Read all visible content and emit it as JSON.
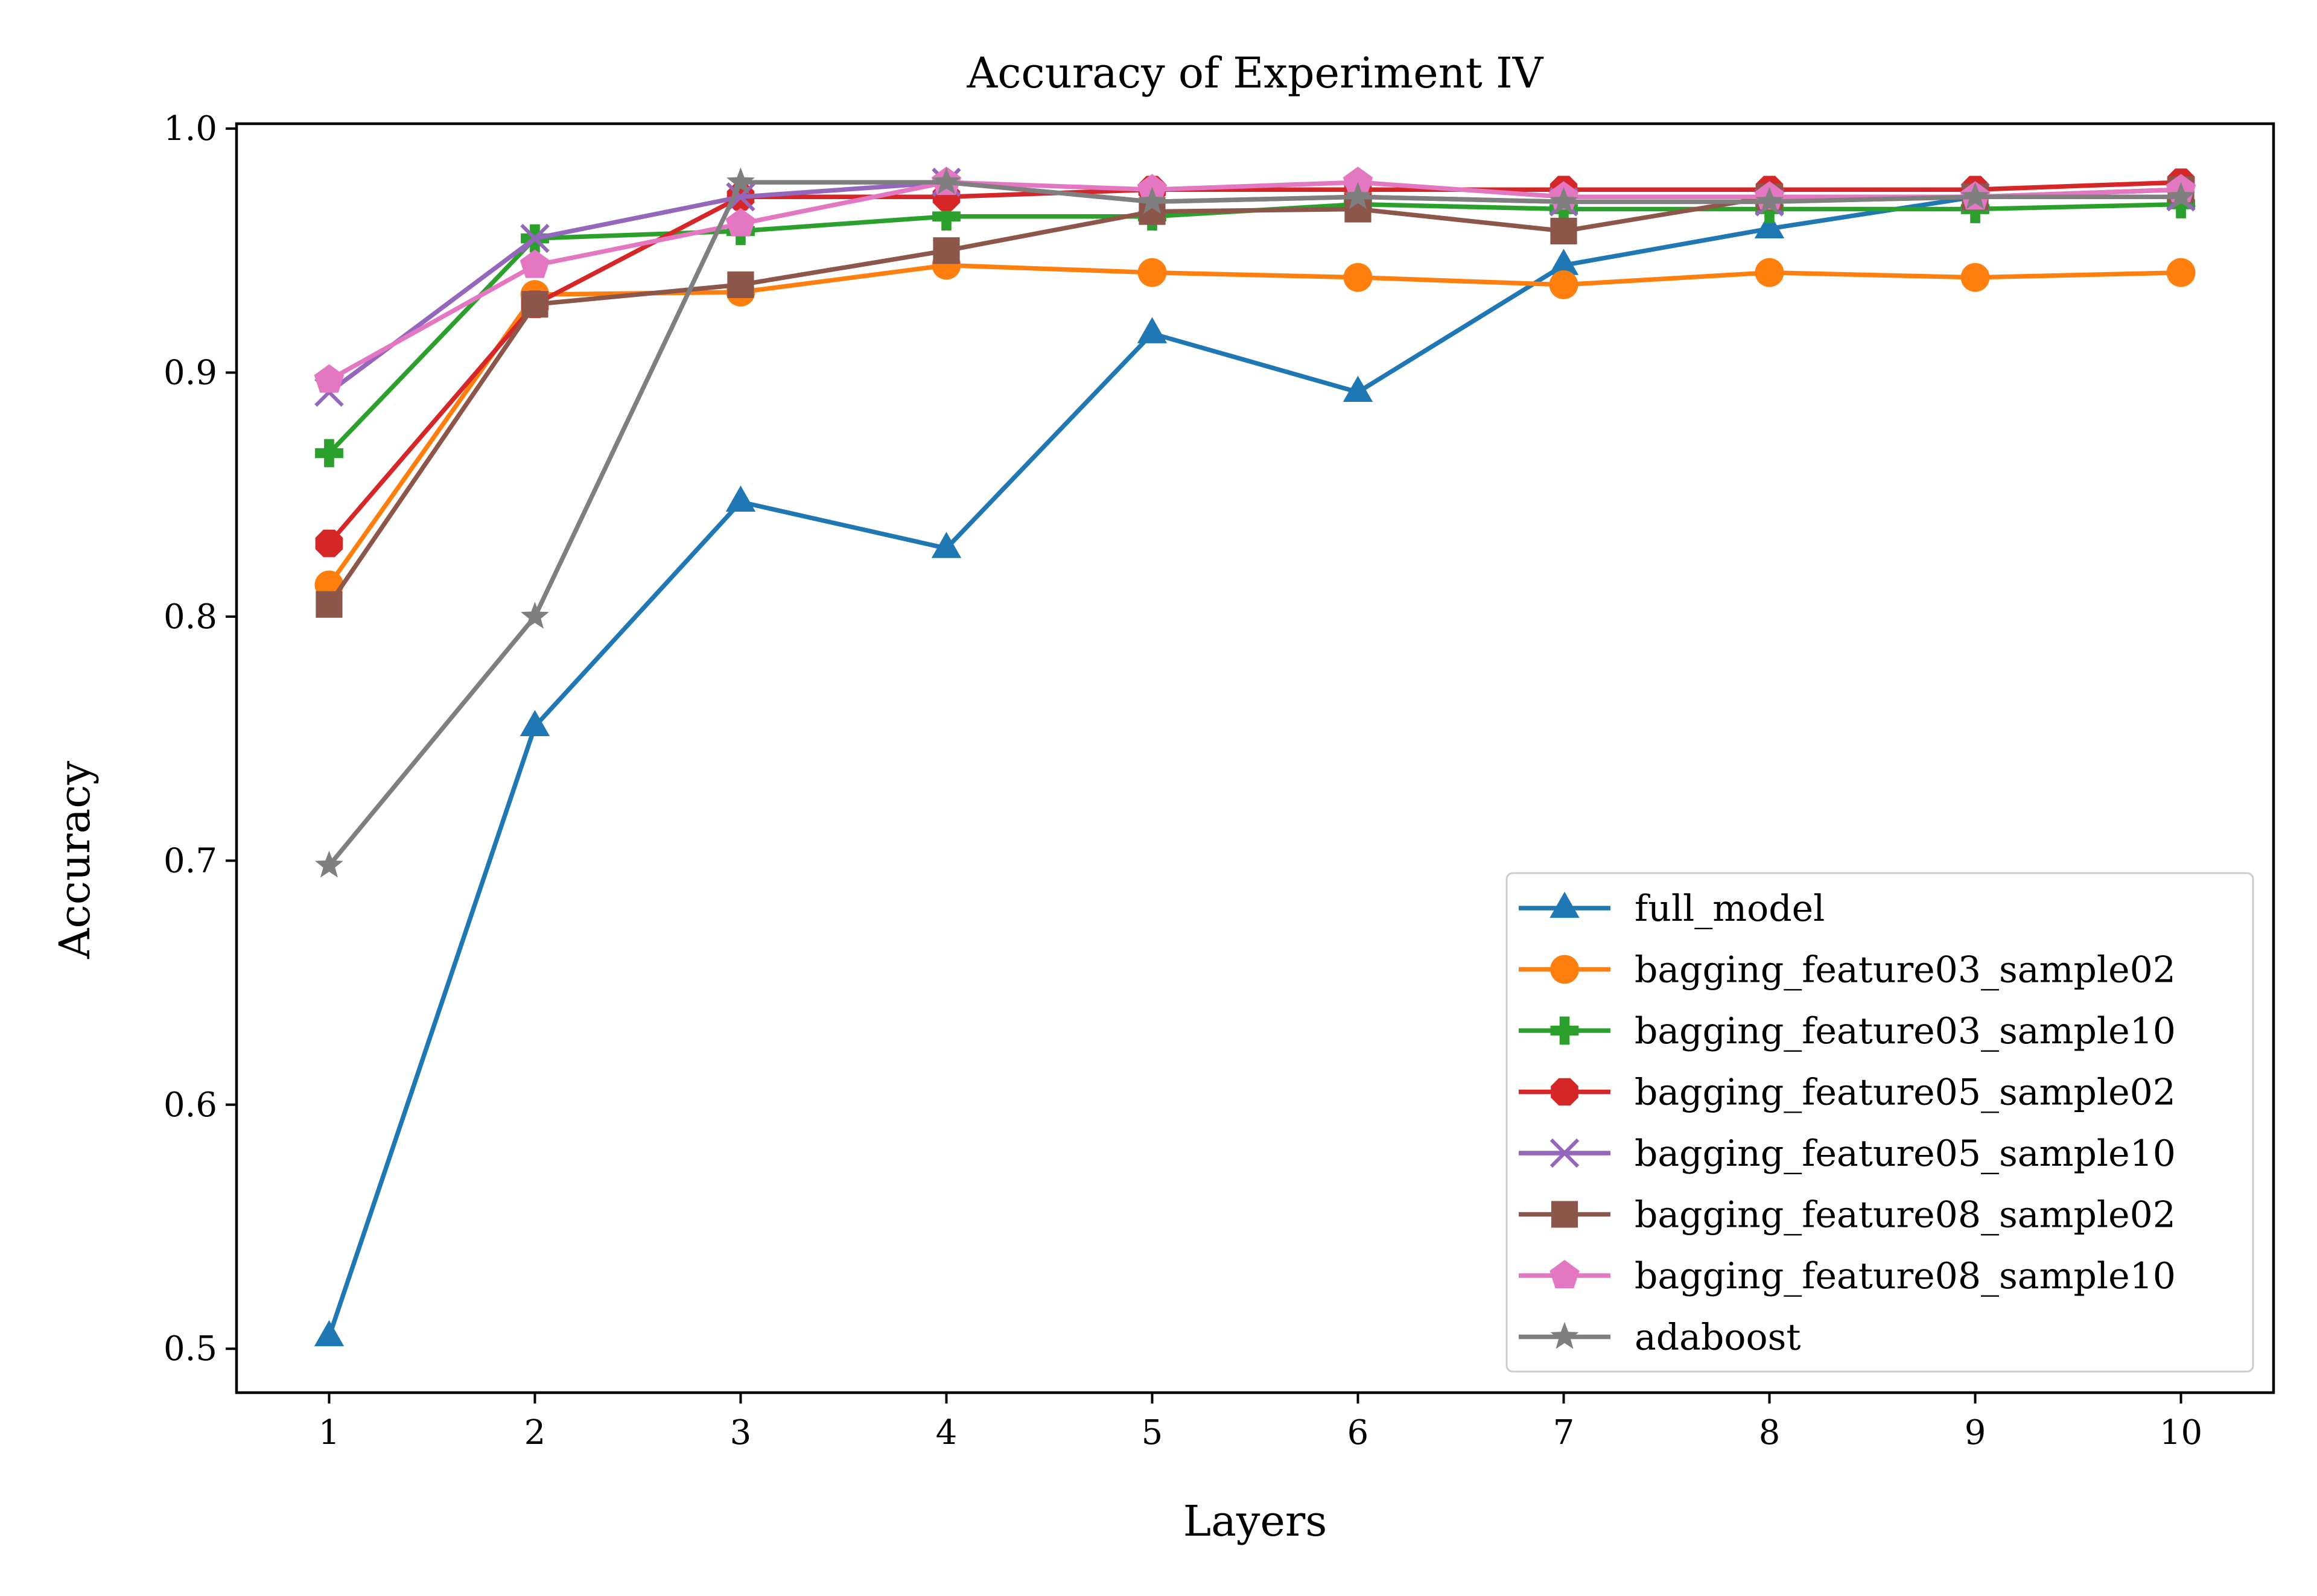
{
  "chart_data": {
    "type": "line",
    "title": "Accuracy of Experiment IV",
    "xlabel": "Layers",
    "ylabel": "Accuracy",
    "x": [
      1,
      2,
      3,
      4,
      5,
      6,
      7,
      8,
      9,
      10
    ],
    "xticks": [
      "1",
      "2",
      "3",
      "4",
      "5",
      "6",
      "7",
      "8",
      "9",
      "10"
    ],
    "yticks": [
      "0.5",
      "0.6",
      "0.7",
      "0.8",
      "0.9",
      "1.0"
    ],
    "xlim": [
      0.55,
      10.45
    ],
    "ylim": [
      0.482,
      1.002
    ],
    "grid": false,
    "legend": "lower right",
    "series": [
      {
        "name": "full_model",
        "color": "#1f77b4",
        "marker": "triangle",
        "values": [
          0.505,
          0.755,
          0.847,
          0.828,
          0.916,
          0.892,
          0.944,
          0.959,
          0.972,
          0.972
        ]
      },
      {
        "name": "bagging_feature03_sample02",
        "color": "#ff7f0e",
        "marker": "circle",
        "values": [
          0.813,
          0.932,
          0.933,
          0.944,
          0.941,
          0.939,
          0.936,
          0.941,
          0.939,
          0.941
        ]
      },
      {
        "name": "bagging_feature03_sample10",
        "color": "#2ca02c",
        "marker": "plus",
        "values": [
          0.867,
          0.955,
          0.958,
          0.964,
          0.964,
          0.969,
          0.967,
          0.967,
          0.967,
          0.969
        ]
      },
      {
        "name": "bagging_feature05_sample02",
        "color": "#d62728",
        "marker": "octagon",
        "values": [
          0.83,
          0.928,
          0.972,
          0.972,
          0.975,
          0.975,
          0.975,
          0.975,
          0.975,
          0.978
        ]
      },
      {
        "name": "bagging_feature05_sample10",
        "color": "#9467bd",
        "marker": "x",
        "values": [
          0.892,
          0.955,
          0.972,
          0.978,
          0.97,
          0.972,
          0.97,
          0.97,
          0.972,
          0.972
        ]
      },
      {
        "name": "bagging_feature08_sample02",
        "color": "#8c564b",
        "marker": "square",
        "values": [
          0.805,
          0.928,
          0.936,
          0.95,
          0.966,
          0.967,
          0.958,
          0.972,
          0.972,
          0.975
        ]
      },
      {
        "name": "bagging_feature08_sample10",
        "color": "#e377c2",
        "marker": "pentagon",
        "values": [
          0.897,
          0.944,
          0.961,
          0.978,
          0.975,
          0.978,
          0.972,
          0.972,
          0.972,
          0.975
        ]
      },
      {
        "name": "adaboost",
        "color": "#7f7f7f",
        "marker": "star",
        "values": [
          0.698,
          0.8,
          0.978,
          0.978,
          0.97,
          0.972,
          0.97,
          0.97,
          0.972,
          0.972
        ]
      }
    ]
  }
}
